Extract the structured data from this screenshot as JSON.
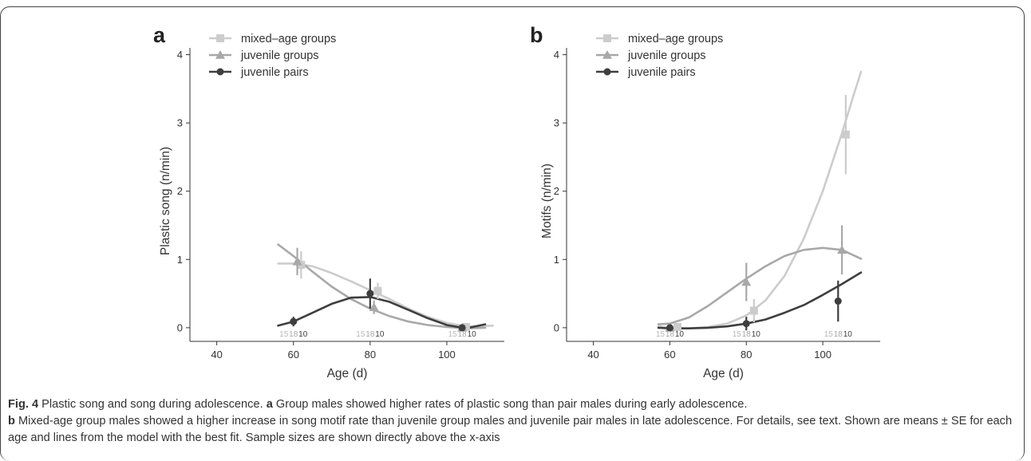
{
  "chart_data": [
    {
      "panel_label": "a",
      "type": "line",
      "xlabel": "Age (d)",
      "ylabel": "Plastic song (n/min)",
      "xlim": [
        33,
        115
      ],
      "ylim": [
        -0.2,
        4.1
      ],
      "xticks": [
        40,
        60,
        80,
        100
      ],
      "yticks": [
        0,
        1,
        2,
        3,
        4
      ],
      "legend_position": "top-left",
      "series": [
        {
          "name": "mixed–age groups",
          "color": "#cccccc",
          "marker": "square",
          "points": [
            {
              "x": 62,
              "y": 0.92,
              "se": 0.2
            },
            {
              "x": 82,
              "y": 0.54,
              "se": 0.12
            },
            {
              "x": 105,
              "y": 0.01,
              "se": 0.03
            }
          ],
          "fit": [
            [
              56,
              0.94
            ],
            [
              60,
              0.94
            ],
            [
              65,
              0.9
            ],
            [
              70,
              0.8
            ],
            [
              75,
              0.68
            ],
            [
              80,
              0.55
            ],
            [
              85,
              0.42
            ],
            [
              90,
              0.28
            ],
            [
              95,
              0.16
            ],
            [
              100,
              0.07
            ],
            [
              105,
              0.02
            ],
            [
              108,
              0.02
            ],
            [
              112,
              0.03
            ]
          ],
          "n": [
            15,
            15,
            15
          ]
        },
        {
          "name": "juvenile groups",
          "color": "#a8a8a8",
          "marker": "triangle",
          "points": [
            {
              "x": 61,
              "y": 0.97,
              "se": 0.2
            },
            {
              "x": 81,
              "y": 0.3,
              "se": 0.1
            },
            {
              "x": 104,
              "y": 0.0,
              "se": 0.02
            }
          ],
          "fit": [
            [
              56,
              1.22
            ],
            [
              60,
              1.05
            ],
            [
              65,
              0.82
            ],
            [
              70,
              0.6
            ],
            [
              75,
              0.42
            ],
            [
              80,
              0.28
            ],
            [
              85,
              0.17
            ],
            [
              90,
              0.09
            ],
            [
              95,
              0.04
            ],
            [
              100,
              0.01
            ],
            [
              105,
              -0.01
            ],
            [
              110,
              0.0
            ]
          ],
          "n": [
            18,
            18,
            18
          ]
        },
        {
          "name": "juvenile pairs",
          "color": "#3e3e3e",
          "marker": "circle",
          "points": [
            {
              "x": 60,
              "y": 0.09,
              "se": 0.07
            },
            {
              "x": 80,
              "y": 0.5,
              "se": 0.22
            },
            {
              "x": 104,
              "y": 0.0,
              "se": 0.02
            }
          ],
          "fit": [
            [
              56,
              0.03
            ],
            [
              60,
              0.09
            ],
            [
              65,
              0.22
            ],
            [
              70,
              0.35
            ],
            [
              75,
              0.44
            ],
            [
              80,
              0.45
            ],
            [
              85,
              0.38
            ],
            [
              90,
              0.26
            ],
            [
              95,
              0.14
            ],
            [
              100,
              0.04
            ],
            [
              105,
              -0.01
            ],
            [
              110,
              0.05
            ]
          ],
          "n": [
            10,
            10,
            10
          ]
        }
      ]
    },
    {
      "panel_label": "b",
      "type": "line",
      "xlabel": "Age (d)",
      "ylabel": "Motifs (n/min)",
      "xlim": [
        33,
        115
      ],
      "ylim": [
        -0.2,
        4.1
      ],
      "xticks": [
        40,
        60,
        80,
        100
      ],
      "yticks": [
        0,
        1,
        2,
        3,
        4
      ],
      "legend_position": "top-left",
      "series": [
        {
          "name": "mixed–age groups",
          "color": "#cccccc",
          "marker": "square",
          "points": [
            {
              "x": 62,
              "y": 0.01,
              "se": 0.02
            },
            {
              "x": 82,
              "y": 0.25,
              "se": 0.17
            },
            {
              "x": 106,
              "y": 2.83,
              "se": 0.58
            }
          ],
          "fit": [
            [
              57,
              0.02
            ],
            [
              60,
              0.0
            ],
            [
              65,
              -0.01
            ],
            [
              70,
              0.01
            ],
            [
              75,
              0.06
            ],
            [
              80,
              0.18
            ],
            [
              85,
              0.4
            ],
            [
              90,
              0.76
            ],
            [
              95,
              1.3
            ],
            [
              100,
              2.0
            ],
            [
              105,
              2.85
            ],
            [
              108,
              3.4
            ],
            [
              110,
              3.75
            ]
          ],
          "n": [
            15,
            15,
            15
          ]
        },
        {
          "name": "juvenile groups",
          "color": "#a8a8a8",
          "marker": "triangle",
          "points": [
            {
              "x": 60,
              "y": 0.0,
              "se": 0.02
            },
            {
              "x": 80,
              "y": 0.67,
              "se": 0.28
            },
            {
              "x": 105,
              "y": 1.14,
              "se": 0.36
            }
          ],
          "fit": [
            [
              57,
              0.05
            ],
            [
              60,
              0.06
            ],
            [
              65,
              0.15
            ],
            [
              70,
              0.32
            ],
            [
              75,
              0.52
            ],
            [
              80,
              0.72
            ],
            [
              85,
              0.9
            ],
            [
              90,
              1.05
            ],
            [
              95,
              1.14
            ],
            [
              100,
              1.17
            ],
            [
              105,
              1.14
            ],
            [
              110,
              1.01
            ]
          ],
          "n": [
            18,
            18,
            18
          ]
        },
        {
          "name": "juvenile pairs",
          "color": "#3e3e3e",
          "marker": "circle",
          "points": [
            {
              "x": 60,
              "y": 0.0,
              "se": 0.02
            },
            {
              "x": 80,
              "y": 0.06,
              "se": 0.1
            },
            {
              "x": 104,
              "y": 0.39,
              "se": 0.3
            }
          ],
          "fit": [
            [
              57,
              0.0
            ],
            [
              60,
              -0.01
            ],
            [
              65,
              -0.01
            ],
            [
              70,
              0.0
            ],
            [
              75,
              0.02
            ],
            [
              80,
              0.06
            ],
            [
              85,
              0.12
            ],
            [
              90,
              0.22
            ],
            [
              95,
              0.33
            ],
            [
              100,
              0.48
            ],
            [
              105,
              0.64
            ],
            [
              110,
              0.81
            ]
          ],
          "n": [
            10,
            10,
            10
          ]
        }
      ]
    }
  ],
  "caption": {
    "fig_label": "Fig. 4",
    "title": " Plastic song and song during adolescence. ",
    "a_label": "a",
    "a_text": " Group males showed higher rates of plastic song than pair males during early adolescence.",
    "b_label": "b",
    "b_text": " Mixed-age group males showed a higher increase in song motif rate than juvenile group males and juvenile pair males in late adolescence. For details, see text. Shown are means ± SE for each age and lines from the model with the best fit. Sample sizes are shown directly above the x-axis"
  }
}
